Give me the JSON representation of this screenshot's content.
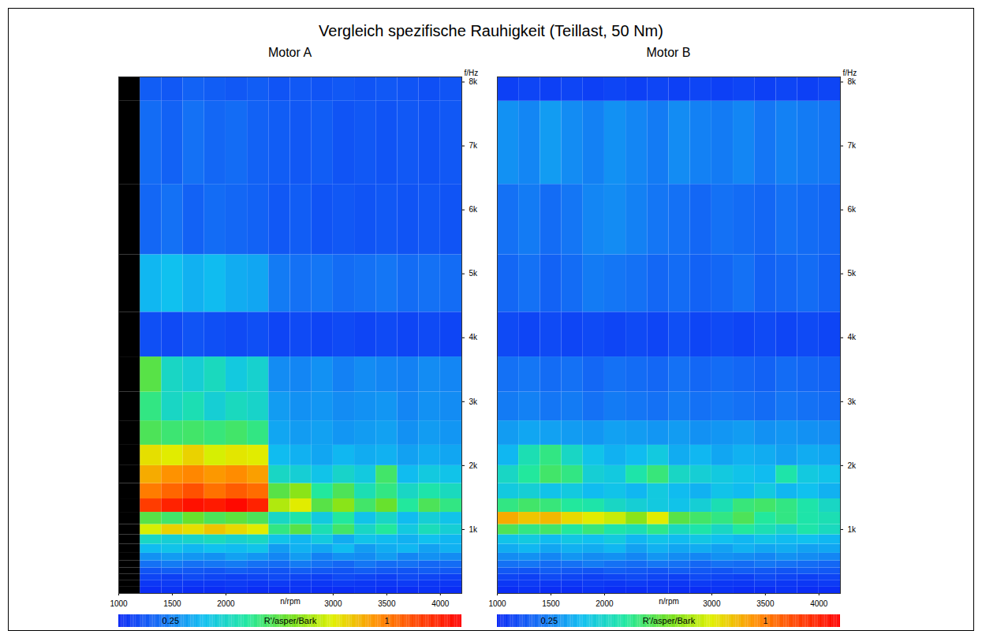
{
  "chart_data": {
    "type": "heatmap",
    "title": "Vergleich spezifische Rauhigkeit (Teillast, 50 Nm)",
    "x_label": "n/rpm",
    "y_label": "f/Hz",
    "xlim": [
      1000,
      4200
    ],
    "xticks": [
      1000,
      1500,
      2000,
      3000,
      3500,
      4000
    ],
    "ylim": [
      0,
      8080
    ],
    "yticks": [
      {
        "value": 1000,
        "label": "1k"
      },
      {
        "value": 2000,
        "label": "2k"
      },
      {
        "value": 3000,
        "label": "3k"
      },
      {
        "value": 4000,
        "label": "4k"
      },
      {
        "value": 5000,
        "label": "5k"
      },
      {
        "value": 6000,
        "label": "6k"
      },
      {
        "value": 7000,
        "label": "7k"
      },
      {
        "value": 8000,
        "label": "8k"
      }
    ],
    "x_edges": [
      1000,
      1200,
      1400,
      1600,
      1800,
      2000,
      2200,
      2400,
      2600,
      2800,
      3000,
      3200,
      3400,
      3600,
      3800,
      4000,
      4200
    ],
    "y_edges": [
      0,
      100,
      200,
      300,
      400,
      510,
      630,
      770,
      920,
      1080,
      1270,
      1480,
      1720,
      2000,
      2320,
      2700,
      3150,
      3700,
      4400,
      5300,
      6400,
      7700,
      9500
    ],
    "colorbar": {
      "label": "R'/asper/Bark",
      "range": [
        0.07,
        1.26
      ],
      "ticks": [
        0.25,
        1
      ]
    },
    "panels": [
      {
        "title": "Motor A",
        "cells": [
          [
            null,
            0.08,
            0.09,
            0.08,
            0.08,
            0.09,
            0.08,
            0.08,
            0.09,
            0.08,
            0.08,
            0.09,
            0.08,
            0.08,
            0.09,
            0.08
          ],
          [
            null,
            0.1,
            0.11,
            0.1,
            0.1,
            0.11,
            0.1,
            0.11,
            0.1,
            0.1,
            0.11,
            0.1,
            0.1,
            0.11,
            0.1,
            0.1
          ],
          [
            null,
            0.13,
            0.12,
            0.14,
            0.13,
            0.12,
            0.13,
            0.14,
            0.13,
            0.12,
            0.14,
            0.13,
            0.12,
            0.14,
            0.13,
            0.12
          ],
          [
            null,
            0.16,
            0.18,
            0.17,
            0.16,
            0.18,
            0.17,
            0.16,
            0.18,
            0.17,
            0.16,
            0.18,
            0.17,
            0.16,
            0.18,
            0.17
          ],
          [
            null,
            0.22,
            0.24,
            0.22,
            0.23,
            0.24,
            0.22,
            0.21,
            0.24,
            0.22,
            0.2,
            0.23,
            0.21,
            0.22,
            0.2,
            0.21
          ],
          [
            null,
            0.28,
            0.3,
            0.29,
            0.28,
            0.31,
            0.29,
            0.26,
            0.3,
            0.25,
            0.28,
            0.27,
            0.3,
            0.26,
            0.28,
            0.27
          ],
          [
            null,
            0.36,
            0.38,
            0.35,
            0.37,
            0.36,
            0.38,
            0.3,
            0.34,
            0.32,
            0.36,
            0.3,
            0.33,
            0.35,
            0.31,
            0.34
          ],
          [
            null,
            0.45,
            0.42,
            0.44,
            0.46,
            0.43,
            0.45,
            0.38,
            0.35,
            0.4,
            0.33,
            0.38,
            0.36,
            0.34,
            0.37,
            0.35
          ],
          [
            null,
            0.8,
            0.86,
            0.84,
            0.88,
            0.85,
            0.82,
            0.55,
            0.62,
            0.48,
            0.58,
            0.45,
            0.52,
            0.4,
            0.47,
            0.42
          ],
          [
            null,
            0.62,
            0.58,
            0.65,
            0.6,
            0.63,
            0.6,
            0.45,
            0.5,
            0.4,
            0.52,
            0.38,
            0.45,
            0.36,
            0.42,
            0.38
          ],
          [
            null,
            1.12,
            1.18,
            1.22,
            1.2,
            1.24,
            1.18,
            0.75,
            0.82,
            0.62,
            0.7,
            0.58,
            0.65,
            0.52,
            0.6,
            0.55
          ],
          [
            null,
            1.0,
            1.04,
            1.08,
            1.02,
            1.06,
            1.03,
            0.62,
            0.7,
            0.52,
            0.6,
            0.48,
            0.55,
            0.45,
            0.5,
            0.46
          ],
          [
            null,
            0.92,
            0.96,
            0.98,
            0.95,
            0.97,
            0.94,
            0.45,
            0.42,
            0.38,
            0.44,
            0.4,
            0.58,
            0.36,
            0.4,
            0.38
          ],
          [
            null,
            0.84,
            0.82,
            0.86,
            0.8,
            0.83,
            0.82,
            0.36,
            0.34,
            0.32,
            0.35,
            0.33,
            0.34,
            0.31,
            0.33,
            0.32
          ],
          [
            null,
            0.6,
            0.57,
            0.58,
            0.56,
            0.58,
            0.55,
            0.32,
            0.3,
            0.31,
            0.29,
            0.3,
            0.31,
            0.28,
            0.3,
            0.29
          ],
          [
            null,
            0.55,
            0.45,
            0.48,
            0.42,
            0.46,
            0.44,
            0.3,
            0.28,
            0.29,
            0.27,
            0.28,
            0.29,
            0.26,
            0.28,
            0.27
          ],
          [
            null,
            0.62,
            0.45,
            0.42,
            0.46,
            0.4,
            0.43,
            0.27,
            0.26,
            0.28,
            0.25,
            0.27,
            0.26,
            0.25,
            0.27,
            0.26
          ],
          [
            null,
            0.15,
            0.14,
            0.16,
            0.15,
            0.14,
            0.15,
            0.13,
            0.14,
            0.13,
            0.14,
            0.13,
            0.14,
            0.13,
            0.14,
            0.13
          ],
          [
            null,
            0.35,
            0.37,
            0.34,
            0.36,
            0.33,
            0.32,
            0.24,
            0.22,
            0.23,
            0.21,
            0.22,
            0.23,
            0.21,
            0.22,
            0.21
          ],
          [
            null,
            0.2,
            0.22,
            0.19,
            0.21,
            0.2,
            0.19,
            0.17,
            0.18,
            0.16,
            0.17,
            0.16,
            0.17,
            0.16,
            0.17,
            0.16
          ],
          [
            null,
            0.21,
            0.19,
            0.22,
            0.2,
            0.21,
            0.19,
            0.18,
            0.17,
            0.18,
            0.16,
            0.17,
            0.16,
            0.17,
            0.16,
            0.17
          ],
          [
            null,
            0.18,
            0.17,
            0.19,
            0.18,
            0.17,
            0.18,
            0.16,
            0.17,
            0.16,
            0.17,
            0.16,
            0.17,
            0.16,
            0.15,
            0.16
          ]
        ]
      },
      {
        "title": "Motor B",
        "cells": [
          [
            0.08,
            0.09,
            0.08,
            0.08,
            0.09,
            0.08,
            0.08,
            0.09,
            0.08,
            0.08,
            0.09,
            0.08,
            0.08,
            0.09,
            0.08,
            0.08
          ],
          [
            0.1,
            0.11,
            0.1,
            0.1,
            0.11,
            0.1,
            0.11,
            0.1,
            0.1,
            0.11,
            0.1,
            0.1,
            0.11,
            0.1,
            0.1,
            0.11
          ],
          [
            0.13,
            0.12,
            0.14,
            0.13,
            0.12,
            0.13,
            0.14,
            0.13,
            0.12,
            0.14,
            0.13,
            0.12,
            0.14,
            0.13,
            0.12,
            0.13
          ],
          [
            0.17,
            0.16,
            0.18,
            0.17,
            0.16,
            0.18,
            0.17,
            0.16,
            0.18,
            0.17,
            0.16,
            0.18,
            0.17,
            0.16,
            0.18,
            0.17
          ],
          [
            0.22,
            0.23,
            0.21,
            0.22,
            0.24,
            0.22,
            0.21,
            0.23,
            0.22,
            0.2,
            0.22,
            0.21,
            0.23,
            0.22,
            0.21,
            0.2
          ],
          [
            0.27,
            0.28,
            0.26,
            0.29,
            0.27,
            0.28,
            0.26,
            0.29,
            0.27,
            0.26,
            0.28,
            0.27,
            0.26,
            0.28,
            0.27,
            0.26
          ],
          [
            0.33,
            0.35,
            0.32,
            0.34,
            0.33,
            0.35,
            0.31,
            0.34,
            0.32,
            0.33,
            0.31,
            0.34,
            0.32,
            0.33,
            0.31,
            0.32
          ],
          [
            0.38,
            0.4,
            0.36,
            0.39,
            0.37,
            0.4,
            0.35,
            0.38,
            0.36,
            0.39,
            0.37,
            0.35,
            0.38,
            0.36,
            0.37,
            0.35
          ],
          [
            0.6,
            0.55,
            0.58,
            0.52,
            0.56,
            0.5,
            0.48,
            0.54,
            0.46,
            0.5,
            0.45,
            0.52,
            0.48,
            0.44,
            0.5,
            0.46
          ],
          [
            0.92,
            0.88,
            0.9,
            0.85,
            0.82,
            0.78,
            0.7,
            0.82,
            0.62,
            0.58,
            0.55,
            0.6,
            0.52,
            0.55,
            0.5,
            0.48
          ],
          [
            0.55,
            0.58,
            0.56,
            0.52,
            0.5,
            0.45,
            0.42,
            0.4,
            0.38,
            0.42,
            0.48,
            0.56,
            0.58,
            0.55,
            0.5,
            0.45
          ],
          [
            0.4,
            0.42,
            0.38,
            0.4,
            0.36,
            0.38,
            0.35,
            0.4,
            0.36,
            0.34,
            0.38,
            0.36,
            0.4,
            0.35,
            0.37,
            0.34
          ],
          [
            0.45,
            0.52,
            0.58,
            0.55,
            0.42,
            0.4,
            0.5,
            0.56,
            0.45,
            0.42,
            0.4,
            0.38,
            0.36,
            0.5,
            0.4,
            0.38
          ],
          [
            0.35,
            0.48,
            0.55,
            0.45,
            0.38,
            0.34,
            0.36,
            0.4,
            0.33,
            0.35,
            0.32,
            0.34,
            0.33,
            0.31,
            0.33,
            0.32
          ],
          [
            0.3,
            0.32,
            0.31,
            0.3,
            0.29,
            0.31,
            0.3,
            0.29,
            0.3,
            0.28,
            0.29,
            0.3,
            0.28,
            0.29,
            0.28,
            0.27
          ],
          [
            0.24,
            0.25,
            0.23,
            0.24,
            0.22,
            0.24,
            0.23,
            0.22,
            0.24,
            0.22,
            0.23,
            0.22,
            0.21,
            0.23,
            0.22,
            0.21
          ],
          [
            0.22,
            0.23,
            0.21,
            0.22,
            0.2,
            0.22,
            0.21,
            0.2,
            0.22,
            0.2,
            0.21,
            0.2,
            0.19,
            0.21,
            0.2,
            0.19
          ],
          [
            0.14,
            0.13,
            0.14,
            0.13,
            0.14,
            0.13,
            0.14,
            0.13,
            0.15,
            0.13,
            0.14,
            0.13,
            0.14,
            0.13,
            0.14,
            0.13
          ],
          [
            0.2,
            0.22,
            0.19,
            0.21,
            0.24,
            0.23,
            0.22,
            0.2,
            0.21,
            0.19,
            0.2,
            0.22,
            0.19,
            0.2,
            0.21,
            0.19
          ],
          [
            0.22,
            0.24,
            0.21,
            0.23,
            0.26,
            0.27,
            0.25,
            0.23,
            0.22,
            0.2,
            0.22,
            0.21,
            0.2,
            0.22,
            0.21,
            0.2
          ],
          [
            0.28,
            0.26,
            0.3,
            0.27,
            0.25,
            0.28,
            0.26,
            0.24,
            0.27,
            0.25,
            0.24,
            0.26,
            0.23,
            0.25,
            0.24,
            0.23
          ],
          [
            0.12,
            0.13,
            0.12,
            0.13,
            0.12,
            0.13,
            0.12,
            0.13,
            0.12,
            0.13,
            0.12,
            0.13,
            0.12,
            0.13,
            0.12,
            0.13
          ]
        ]
      }
    ]
  }
}
